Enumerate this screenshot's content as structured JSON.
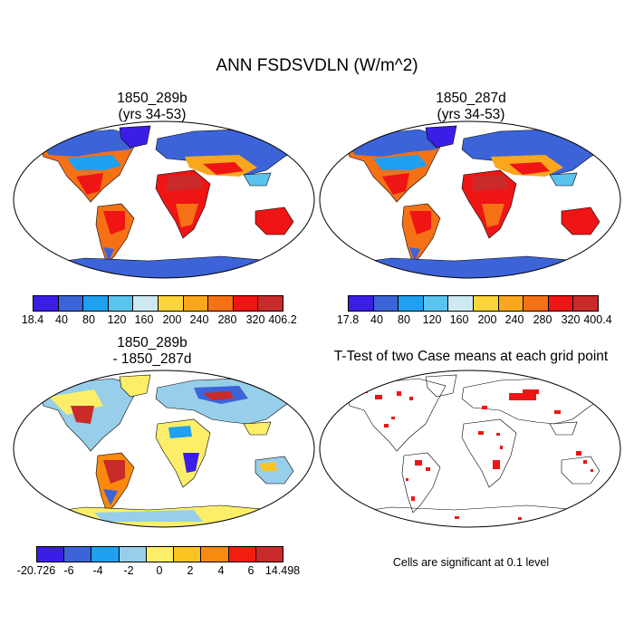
{
  "figure_title": "ANN FSDSVDLN (W/m^2)",
  "panels": {
    "case1": {
      "title1": "1850_289b",
      "title2": "(yrs 34-53)"
    },
    "case2": {
      "title1": "1850_287d",
      "title2": "(yrs 34-53)"
    },
    "diff": {
      "title1": "1850_289b",
      "title2": "- 1850_287d"
    },
    "ttest": {
      "title1": "T-Test of two Case means at each grid point",
      "note": "Cells are significant at 0.1 level"
    }
  },
  "colorbars": {
    "case1": {
      "colors": [
        "#3a1ee6",
        "#3c64d8",
        "#1fa0f0",
        "#5ac3ee",
        "#cfe9f3",
        "#fdd53a",
        "#fba71e",
        "#f67115",
        "#ef1515",
        "#c92a2a"
      ],
      "labels": [
        "18.4",
        "40",
        "80",
        "120",
        "160",
        "200",
        "240",
        "280",
        "320",
        "406.2"
      ]
    },
    "case2": {
      "colors": [
        "#3a1ee6",
        "#3c64d8",
        "#1fa0f0",
        "#5ac3ee",
        "#cfe9f3",
        "#fdd53a",
        "#fba71e",
        "#f67115",
        "#ef1515",
        "#c92a2a"
      ],
      "labels": [
        "17.8",
        "40",
        "80",
        "120",
        "160",
        "200",
        "240",
        "280",
        "320",
        "400.4"
      ]
    },
    "diff": {
      "colors": [
        "#3a1ee6",
        "#3c64d8",
        "#1fa0f0",
        "#97cfea",
        "#fdee6a",
        "#fbc420",
        "#f98a0e",
        "#f21d10",
        "#c92a2a"
      ],
      "labels": [
        "-20.726",
        "-6",
        "-4",
        "-2",
        "0",
        "2",
        "4",
        "6",
        "14.498"
      ]
    }
  }
}
